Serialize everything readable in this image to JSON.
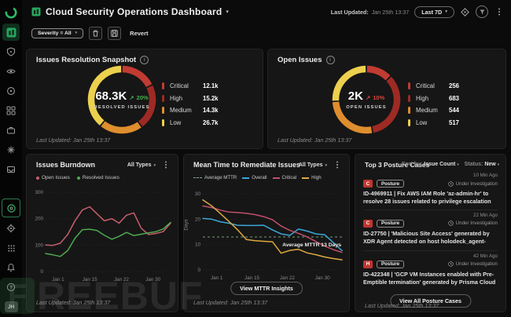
{
  "glyphs": {
    "chevron_down": "▾",
    "kebab": "⋮",
    "info": "i",
    "trend_up": "↗",
    "question": "?"
  },
  "colors": {
    "accent_green": "#27a55f",
    "critical": "#c23b33",
    "high": "#9e2a24",
    "medium": "#df8e2e",
    "low": "#ecd04e",
    "delta_good": "#44b24a",
    "delta_bad": "#d4483c",
    "open_line": "#c75f6b",
    "resolved_line": "#4cab50",
    "overall_line": "#3ba7d8",
    "critical_line": "#c0506a",
    "high_line": "#dfa93f",
    "avg_line": "#7c9f7c"
  },
  "sidebar": {
    "top_icons": [
      "prisma-cloud-logo",
      "dashboards",
      "incidents-shield",
      "visibility-eye",
      "detection-radar",
      "inventory-grid",
      "cases-briefcase",
      "automation-spark",
      "reports-inbox"
    ],
    "bottom_icons": [
      "live-status",
      "settings-gear",
      "apps-grid",
      "notifications-bell",
      "help"
    ],
    "avatar_initials": "JH"
  },
  "header": {
    "title": "Cloud Security Operations Dashboard",
    "last_updated_label": "Last Updated:",
    "last_updated_value": "Jan 25th 13:37",
    "time_range": "Last 7D"
  },
  "toolbar": {
    "filter_chip": "Severity = All",
    "revert": "Revert"
  },
  "panels": {
    "resolution": {
      "title": "Issues Resolution Snapshot",
      "center_value": "68.3K",
      "delta": "20%",
      "center_label": "RESOLVED ISSUES",
      "legend": [
        {
          "label": "Critical",
          "value": "12.1k"
        },
        {
          "label": "High",
          "value": "15.2k"
        },
        {
          "label": "Medium",
          "value": "14.3k"
        },
        {
          "label": "Low",
          "value": "26.7k"
        }
      ],
      "last_updated": "Last Updated: Jan 25th 13:37"
    },
    "open": {
      "title": "Open Issues",
      "center_value": "2K",
      "delta": "10%",
      "center_label": "OPEN ISSUES",
      "legend": [
        {
          "label": "Critical",
          "value": "256"
        },
        {
          "label": "High",
          "value": "683"
        },
        {
          "label": "Medium",
          "value": "544"
        },
        {
          "label": "Low",
          "value": "517"
        }
      ],
      "last_updated": "Last Updated: Jan 25th 13:37"
    },
    "burndown": {
      "title": "Issues Burndown",
      "filter": "All Types",
      "legend": [
        {
          "label": "Open Issues"
        },
        {
          "label": "Resolved Issues"
        }
      ],
      "last_updated": "Last Updated: Jan 25th 13:37"
    },
    "mttr": {
      "title": "Mean Time to Remediate Issues",
      "filter": "All Types",
      "legend": [
        {
          "label": "Average MTTR"
        },
        {
          "label": "Overall"
        },
        {
          "label": "Critical"
        },
        {
          "label": "High"
        }
      ],
      "ylabel": "Days",
      "annotation": "Average MTTR 13 Days",
      "button": "View MTTR Insights",
      "last_updated": "Last Updated: Jan 25th 13:37"
    },
    "posture": {
      "title": "Top 3 Posture Cases",
      "sort_label": "Sort by:",
      "sort_value": "Issue Count",
      "status_label": "Status:",
      "status_value": "New",
      "cases": [
        {
          "time": "10 Min Ago",
          "severity": "C",
          "tag": "Posture",
          "status": "Under Investigation",
          "text": "ID-4969911 | Fix AWS IAM Role 'az-admin-hr' to resolve 28 issues related to privilege escalation"
        },
        {
          "time": "22 Min Ago",
          "severity": "C",
          "tag": "Posture",
          "status": "Under Investigation",
          "text": "ID-27750 | 'Malicious Site Access' generated by XDR Agent detected on host holodeck_agent-dbbe31843d143 involv..."
        },
        {
          "time": "42 Min Ago",
          "severity": "H",
          "tag": "Posture",
          "status": "Under Investigation",
          "text": "ID-422348 | 'GCP VM Instances enabled with Pre-Emptible termination' generated by Prisma Cloud detected on host p..."
        }
      ],
      "button": "View All Posture Cases",
      "last_updated": "Last Updated: Jan 25th 13:37"
    }
  },
  "watermark": {
    "logo_letter": "F",
    "text": "REEBUF"
  },
  "chart_data": [
    {
      "id": "resolution_donut",
      "type": "pie",
      "title": "Issues Resolution Snapshot",
      "center": "68.3K",
      "delta": "+20%",
      "segments": [
        {
          "name": "Critical",
          "value": 12100,
          "color": "#c23b33"
        },
        {
          "name": "High",
          "value": 15200,
          "color": "#9e2a24"
        },
        {
          "name": "Medium",
          "value": 14300,
          "color": "#df8e2e"
        },
        {
          "name": "Low",
          "value": 26700,
          "color": "#ecd04e"
        }
      ]
    },
    {
      "id": "open_donut",
      "type": "pie",
      "title": "Open Issues",
      "center": "2K",
      "delta": "+10%",
      "segments": [
        {
          "name": "Critical",
          "value": 256,
          "color": "#c23b33"
        },
        {
          "name": "High",
          "value": 683,
          "color": "#9e2a24"
        },
        {
          "name": "Medium",
          "value": 544,
          "color": "#df8e2e"
        },
        {
          "name": "Low",
          "value": 517,
          "color": "#ecd04e"
        }
      ]
    },
    {
      "id": "burndown_chart",
      "type": "line",
      "title": "Issues Burndown",
      "x_ticks": [
        "Jan 1",
        "Jan 15",
        "Jan 22",
        "Jan 30"
      ],
      "y_ticks": [
        0,
        100,
        200,
        300
      ],
      "ylim": [
        0,
        300
      ],
      "grid": true,
      "legend_position": "top",
      "series": [
        {
          "name": "Open Issues",
          "color": "#c75f6b",
          "values": [
            100,
            99,
            107,
            140,
            192,
            233,
            245,
            218,
            192,
            200,
            183,
            213,
            222,
            164,
            140,
            144,
            151,
            183
          ]
        },
        {
          "name": "Resolved Issues",
          "color": "#4cab50",
          "values": [
            68,
            63,
            57,
            79,
            126,
            158,
            160,
            155,
            137,
            122,
            133,
            148,
            136,
            141,
            146,
            151,
            161,
            186
          ]
        }
      ]
    },
    {
      "id": "mttr_chart",
      "type": "line",
      "title": "Mean Time to Remediate Issues",
      "x_ticks": [
        "Jan 1",
        "Jan 15",
        "Jan 22",
        "Jan 30"
      ],
      "y_ticks": [
        0,
        10,
        20,
        30
      ],
      "ylim": [
        0,
        30
      ],
      "ylabel": "Days",
      "grid": true,
      "legend_position": "top",
      "avg_line": {
        "label": "Average MTTR 13 Days",
        "value": 13,
        "color": "#7c9f7c"
      },
      "series": [
        {
          "name": "Overall",
          "color": "#3ba7d8",
          "values": [
            20.3,
            20,
            19,
            18.4,
            17.6,
            17.5,
            17.5,
            17.6,
            15.8,
            14.2,
            13.6,
            16.1,
            15.3,
            14.2,
            13.9,
            10.8,
            7.6
          ]
        },
        {
          "name": "Critical",
          "color": "#c0506a",
          "values": [
            25.2,
            24.6,
            23.6,
            22.8,
            22.6,
            22.3,
            21.8,
            21,
            19.8,
            17.3,
            15.6,
            14.4,
            13,
            11.2,
            9.4,
            8,
            6.9
          ]
        },
        {
          "name": "High",
          "color": "#dfa93f",
          "values": [
            27.6,
            25.3,
            22.3,
            19.1,
            15.8,
            12,
            11.5,
            11.3,
            11.1,
            6.6,
            7.7,
            8.1,
            6.7,
            6,
            5.1,
            4.5,
            4
          ]
        }
      ]
    }
  ]
}
